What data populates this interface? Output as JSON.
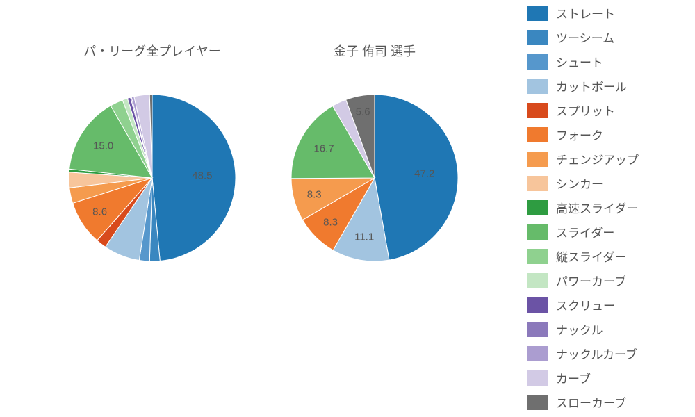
{
  "background_color": "#ffffff",
  "text_color": "#555555",
  "title_fontsize": 18,
  "label_fontsize": 15,
  "legend_fontsize": 17,
  "palette": {
    "straight": "#1f77b4",
    "two_seam": "#3a87c0",
    "shoot": "#5697cc",
    "cutball": "#a2c4e0",
    "split": "#d84a1c",
    "fork": "#f07a2e",
    "changeup": "#f59b4e",
    "sinker": "#f7c59b",
    "fast_slider": "#2e9c41",
    "slider": "#66bb6a",
    "v_slider": "#8fd18f",
    "power_curve": "#c3e6c3",
    "screw": "#6b53a5",
    "knuckle": "#8b79bb",
    "knuckle_curve": "#ab9dd0",
    "curve": "#d2cae5",
    "slow_curve": "#6f6f6f"
  },
  "legend": [
    {
      "key": "straight",
      "label": "ストレート"
    },
    {
      "key": "two_seam",
      "label": "ツーシーム"
    },
    {
      "key": "shoot",
      "label": "シュート"
    },
    {
      "key": "cutball",
      "label": "カットボール"
    },
    {
      "key": "split",
      "label": "スプリット"
    },
    {
      "key": "fork",
      "label": "フォーク"
    },
    {
      "key": "changeup",
      "label": "チェンジアップ"
    },
    {
      "key": "sinker",
      "label": "シンカー"
    },
    {
      "key": "fast_slider",
      "label": "高速スライダー"
    },
    {
      "key": "slider",
      "label": "スライダー"
    },
    {
      "key": "v_slider",
      "label": "縦スライダー"
    },
    {
      "key": "power_curve",
      "label": "パワーカーブ"
    },
    {
      "key": "screw",
      "label": "スクリュー"
    },
    {
      "key": "knuckle",
      "label": "ナックル"
    },
    {
      "key": "knuckle_curve",
      "label": "ナックルカーブ"
    },
    {
      "key": "curve",
      "label": "カーブ"
    },
    {
      "key": "slow_curve",
      "label": "スローカーブ"
    }
  ],
  "charts": [
    {
      "title": "パ・リーグ全プレイヤー",
      "type": "pie",
      "start_angle_deg": 90,
      "direction": "clockwise",
      "radius": 120,
      "slices": [
        {
          "key": "straight",
          "value": 48.5,
          "label": "48.5",
          "label_r": 0.6
        },
        {
          "key": "two_seam",
          "value": 2.0
        },
        {
          "key": "shoot",
          "value": 2.0
        },
        {
          "key": "cutball",
          "value": 7.0
        },
        {
          "key": "split",
          "value": 2.0
        },
        {
          "key": "fork",
          "value": 8.6,
          "label": "8.6",
          "label_r": 0.75
        },
        {
          "key": "changeup",
          "value": 3.0
        },
        {
          "key": "sinker",
          "value": 3.0
        },
        {
          "key": "fast_slider",
          "value": 0.6
        },
        {
          "key": "slider",
          "value": 15.0,
          "label": "15.0",
          "label_r": 0.7
        },
        {
          "key": "v_slider",
          "value": 2.5
        },
        {
          "key": "power_curve",
          "value": 1.0
        },
        {
          "key": "screw",
          "value": 0.6
        },
        {
          "key": "knuckle",
          "value": 0.2
        },
        {
          "key": "knuckle_curve",
          "value": 0.5
        },
        {
          "key": "curve",
          "value": 3.0
        },
        {
          "key": "slow_curve",
          "value": 0.5
        }
      ]
    },
    {
      "title": "金子 侑司  選手",
      "type": "pie",
      "start_angle_deg": 90,
      "direction": "clockwise",
      "radius": 120,
      "slices": [
        {
          "key": "straight",
          "value": 47.2,
          "label": "47.2",
          "label_r": 0.6
        },
        {
          "key": "cutball",
          "value": 11.1,
          "label": "11.1",
          "label_r": 0.72
        },
        {
          "key": "fork",
          "value": 8.3,
          "label": "8.3",
          "label_r": 0.75
        },
        {
          "key": "changeup",
          "value": 8.3,
          "label": "8.3",
          "label_r": 0.75
        },
        {
          "key": "slider",
          "value": 16.7,
          "label": "16.7",
          "label_r": 0.7
        },
        {
          "key": "curve",
          "value": 2.8
        },
        {
          "key": "slow_curve",
          "value": 5.6,
          "label": "5.6",
          "label_r": 0.8
        }
      ]
    }
  ]
}
